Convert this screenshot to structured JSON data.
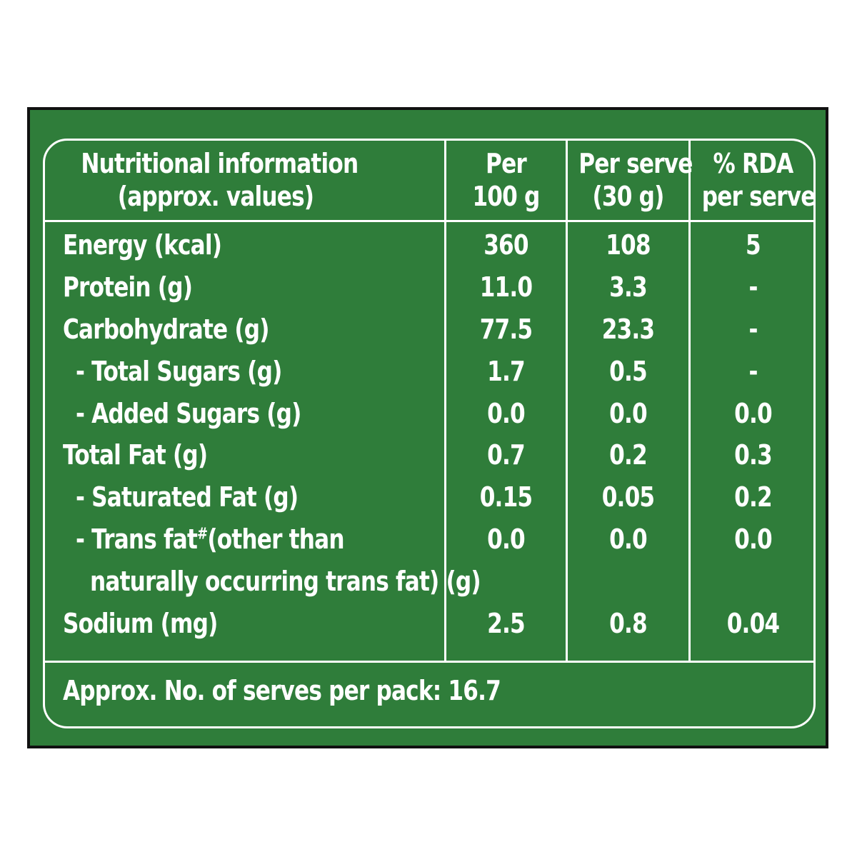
{
  "header": {
    "col1": [
      "Nutritional information",
      "(approx. values)"
    ],
    "col2": [
      "Per",
      "100 g"
    ],
    "col3": [
      "Per serve",
      "(30 g)"
    ],
    "col4": [
      "% RDA",
      "per serve"
    ]
  },
  "rows": [
    {
      "label": "Energy (kcal)",
      "per100": "360",
      "perServe": "108",
      "rda": "5"
    },
    {
      "label": "Protein (g)",
      "per100": "11.0",
      "perServe": "3.3",
      "rda": "-"
    },
    {
      "label": "Carbohydrate (g)",
      "per100": "77.5",
      "perServe": "23.3",
      "rda": "-"
    },
    {
      "label": "- Total Sugars (g)",
      "per100": "1.7",
      "perServe": "0.5",
      "rda": "-"
    },
    {
      "label": "- Added Sugars (g)",
      "per100": "0.0",
      "perServe": "0.0",
      "rda": "0.0"
    },
    {
      "label": "Total Fat (g)",
      "per100": "0.7",
      "perServe": "0.2",
      "rda": "0.3"
    },
    {
      "label": "- Saturated Fat (g)",
      "per100": "0.15",
      "perServe": "0.05",
      "rda": "0.2"
    },
    {
      "label_a": "- Trans fat",
      "label_sup": "#",
      "label_b": "(other than",
      "label_c": "naturally occurring trans fat) (g)",
      "per100": "0.0",
      "perServe": "0.0",
      "rda": "0.0"
    },
    {
      "label": "Sodium (mg)",
      "per100": "2.5",
      "perServe": "0.8",
      "rda": "0.04"
    }
  ],
  "footer": {
    "text": "Approx. No. of serves per pack: 16.7"
  },
  "colors": {
    "background": "#2f7d3a",
    "text": "#ffffff",
    "border": "#111111"
  }
}
